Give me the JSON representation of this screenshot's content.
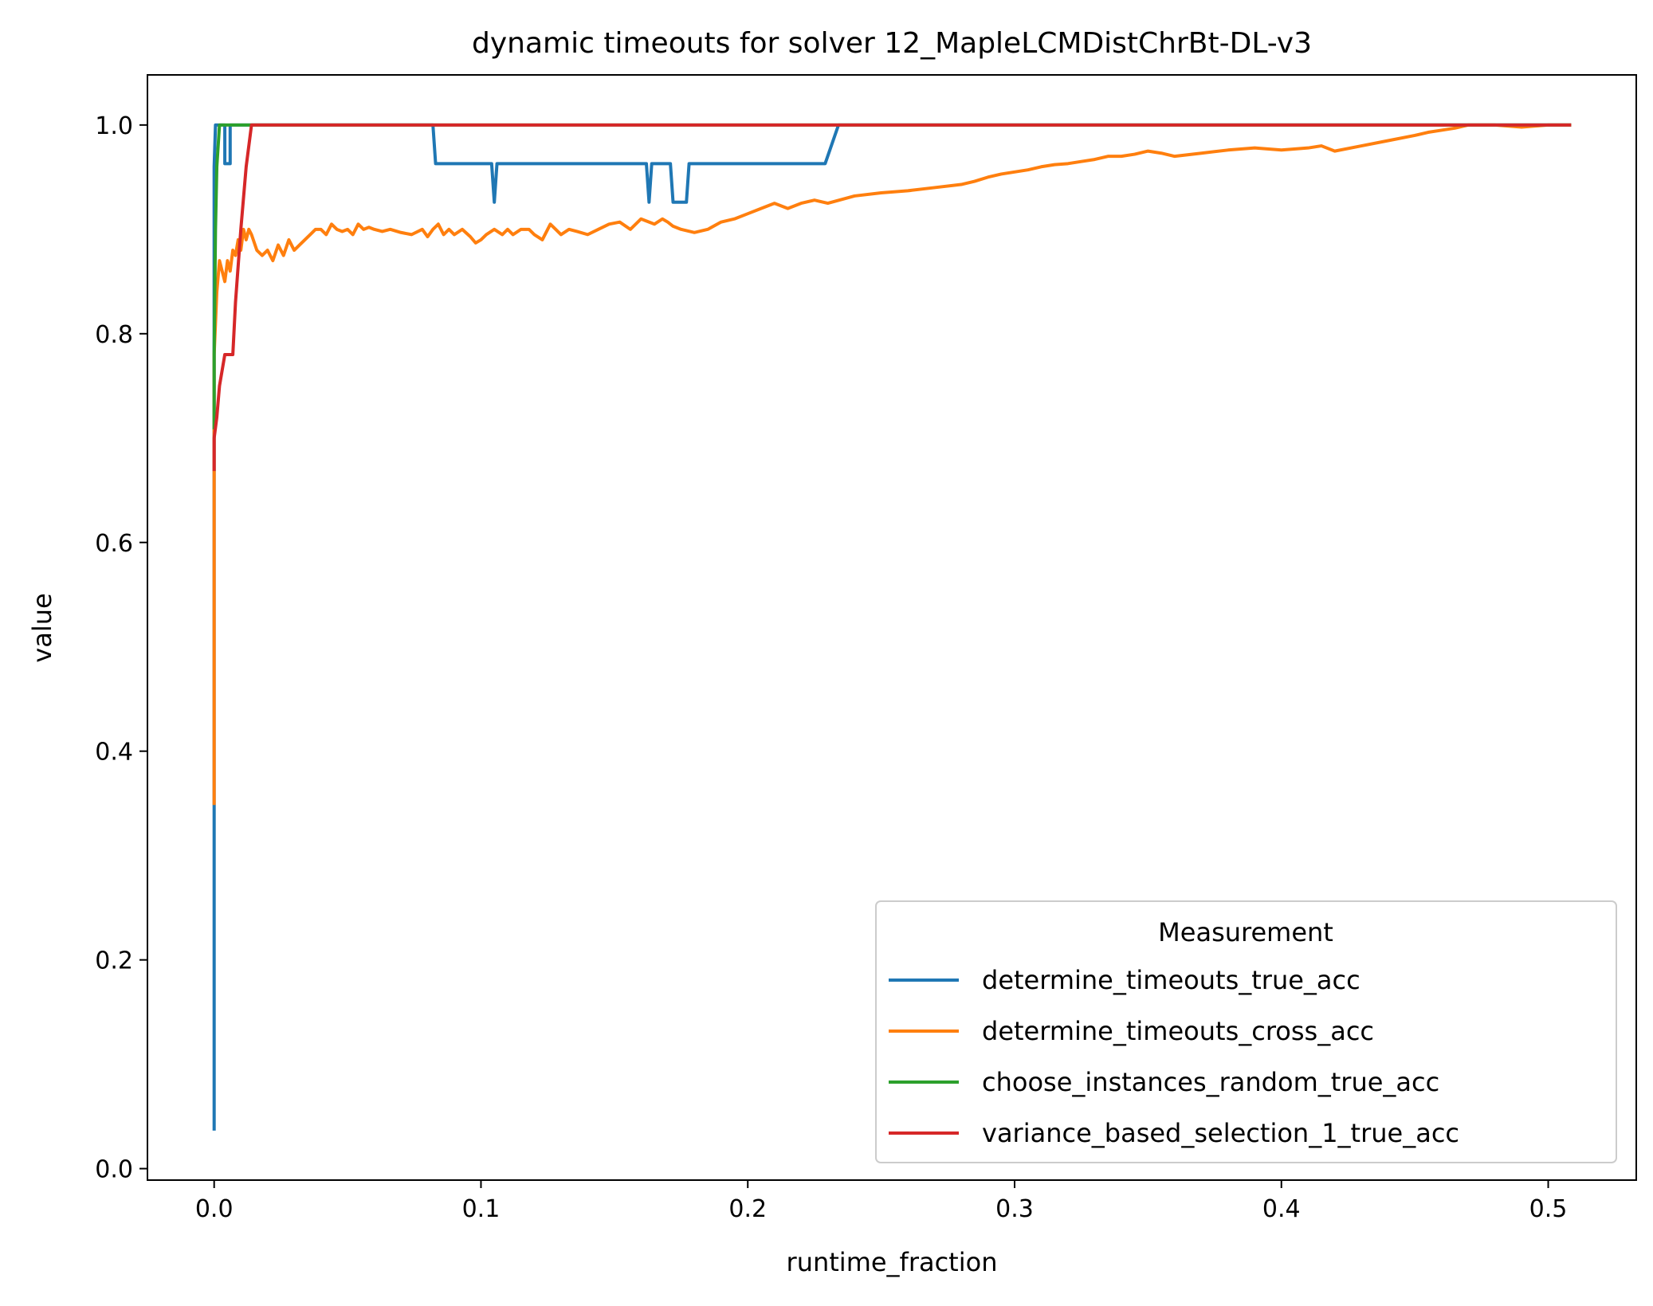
{
  "chart_data": {
    "type": "line",
    "title": "dynamic timeouts for solver 12_MapleLCMDistChrBt-DL-v3",
    "xlabel": "runtime_fraction",
    "ylabel": "value",
    "xlim": [
      -0.025,
      0.533
    ],
    "ylim": [
      -0.011,
      1.048
    ],
    "xticks": [
      0.0,
      0.1,
      0.2,
      0.3,
      0.4,
      0.5
    ],
    "xtick_labels": [
      "0.0",
      "0.1",
      "0.2",
      "0.3",
      "0.4",
      "0.5"
    ],
    "yticks": [
      0.0,
      0.2,
      0.4,
      0.6,
      0.8,
      1.0
    ],
    "ytick_labels": [
      "0.0",
      "0.2",
      "0.4",
      "0.6",
      "0.8",
      "1.0"
    ],
    "grid": false,
    "legend": {
      "title": "Measurement",
      "placement": "lower right"
    },
    "series": [
      {
        "name": "determine_timeouts_true_acc",
        "color": "#1f77b4",
        "x": [
          0.0,
          0.0,
          0.0,
          0.0005,
          0.001,
          0.002,
          0.003,
          0.004,
          0.004,
          0.005,
          0.006,
          0.006,
          0.007,
          0.008,
          0.082,
          0.083,
          0.104,
          0.105,
          0.106,
          0.107,
          0.162,
          0.163,
          0.164,
          0.165,
          0.171,
          0.172,
          0.174,
          0.175,
          0.177,
          0.178,
          0.18,
          0.229,
          0.234,
          0.235,
          0.508
        ],
        "y": [
          0.038,
          0.35,
          0.96,
          1.0,
          1.0,
          1.0,
          1.0,
          1.0,
          0.963,
          0.963,
          0.963,
          1.0,
          1.0,
          1.0,
          1.0,
          0.963,
          0.963,
          0.926,
          0.963,
          0.963,
          0.963,
          0.926,
          0.963,
          0.963,
          0.963,
          0.926,
          0.926,
          0.926,
          0.926,
          0.963,
          0.963,
          0.963,
          1.0,
          1.0,
          1.0
        ]
      },
      {
        "name": "determine_timeouts_cross_acc",
        "color": "#ff7f0e",
        "x": [
          0.0,
          0.0,
          0.0,
          0.001,
          0.002,
          0.003,
          0.004,
          0.005,
          0.006,
          0.007,
          0.008,
          0.009,
          0.01,
          0.011,
          0.012,
          0.013,
          0.014,
          0.016,
          0.018,
          0.02,
          0.022,
          0.024,
          0.026,
          0.028,
          0.03,
          0.032,
          0.034,
          0.036,
          0.038,
          0.04,
          0.042,
          0.044,
          0.046,
          0.048,
          0.05,
          0.052,
          0.054,
          0.056,
          0.058,
          0.06,
          0.063,
          0.066,
          0.07,
          0.074,
          0.078,
          0.08,
          0.082,
          0.084,
          0.086,
          0.088,
          0.09,
          0.093,
          0.096,
          0.098,
          0.1,
          0.102,
          0.105,
          0.108,
          0.11,
          0.112,
          0.115,
          0.118,
          0.12,
          0.123,
          0.126,
          0.128,
          0.13,
          0.133,
          0.136,
          0.14,
          0.144,
          0.148,
          0.152,
          0.156,
          0.16,
          0.162,
          0.165,
          0.168,
          0.17,
          0.172,
          0.175,
          0.18,
          0.185,
          0.19,
          0.195,
          0.2,
          0.205,
          0.21,
          0.215,
          0.22,
          0.225,
          0.23,
          0.24,
          0.25,
          0.26,
          0.27,
          0.28,
          0.285,
          0.29,
          0.295,
          0.3,
          0.305,
          0.31,
          0.315,
          0.32,
          0.325,
          0.33,
          0.335,
          0.34,
          0.345,
          0.35,
          0.355,
          0.36,
          0.37,
          0.38,
          0.39,
          0.4,
          0.41,
          0.415,
          0.42,
          0.43,
          0.44,
          0.45,
          0.455,
          0.46,
          0.465,
          0.47,
          0.48,
          0.49,
          0.5,
          0.508
        ],
        "y": [
          0.35,
          0.67,
          0.78,
          0.84,
          0.87,
          0.86,
          0.85,
          0.87,
          0.86,
          0.88,
          0.875,
          0.89,
          0.88,
          0.9,
          0.89,
          0.9,
          0.895,
          0.88,
          0.875,
          0.88,
          0.87,
          0.885,
          0.875,
          0.89,
          0.88,
          0.885,
          0.89,
          0.895,
          0.9,
          0.9,
          0.895,
          0.905,
          0.9,
          0.898,
          0.9,
          0.895,
          0.905,
          0.9,
          0.902,
          0.9,
          0.898,
          0.9,
          0.897,
          0.895,
          0.9,
          0.893,
          0.9,
          0.905,
          0.895,
          0.9,
          0.895,
          0.9,
          0.893,
          0.887,
          0.89,
          0.895,
          0.9,
          0.895,
          0.9,
          0.895,
          0.9,
          0.9,
          0.895,
          0.89,
          0.905,
          0.9,
          0.895,
          0.9,
          0.898,
          0.895,
          0.9,
          0.905,
          0.907,
          0.9,
          0.91,
          0.908,
          0.905,
          0.91,
          0.907,
          0.903,
          0.9,
          0.897,
          0.9,
          0.907,
          0.91,
          0.915,
          0.92,
          0.925,
          0.92,
          0.925,
          0.928,
          0.925,
          0.932,
          0.935,
          0.937,
          0.94,
          0.943,
          0.946,
          0.95,
          0.953,
          0.955,
          0.957,
          0.96,
          0.962,
          0.963,
          0.965,
          0.967,
          0.97,
          0.97,
          0.972,
          0.975,
          0.973,
          0.97,
          0.973,
          0.976,
          0.978,
          0.976,
          0.978,
          0.98,
          0.975,
          0.98,
          0.985,
          0.99,
          0.993,
          0.995,
          0.997,
          1.0,
          1.0,
          0.998,
          1.0,
          1.0
        ]
      },
      {
        "name": "choose_instances_random_true_acc",
        "color": "#2ca02c",
        "x": [
          0.0,
          0.0,
          0.0005,
          0.001,
          0.002,
          0.004,
          0.006,
          0.008,
          0.508
        ],
        "y": [
          0.71,
          0.78,
          0.9,
          0.96,
          1.0,
          1.0,
          1.0,
          1.0,
          1.0
        ]
      },
      {
        "name": "variance_based_selection_1_true_acc",
        "color": "#d62728",
        "x": [
          0.0,
          0.0,
          0.001,
          0.002,
          0.004,
          0.006,
          0.007,
          0.008,
          0.01,
          0.012,
          0.014,
          0.016,
          0.508
        ],
        "y": [
          0.67,
          0.7,
          0.72,
          0.75,
          0.78,
          0.78,
          0.78,
          0.83,
          0.9,
          0.96,
          1.0,
          1.0,
          1.0
        ]
      }
    ]
  }
}
